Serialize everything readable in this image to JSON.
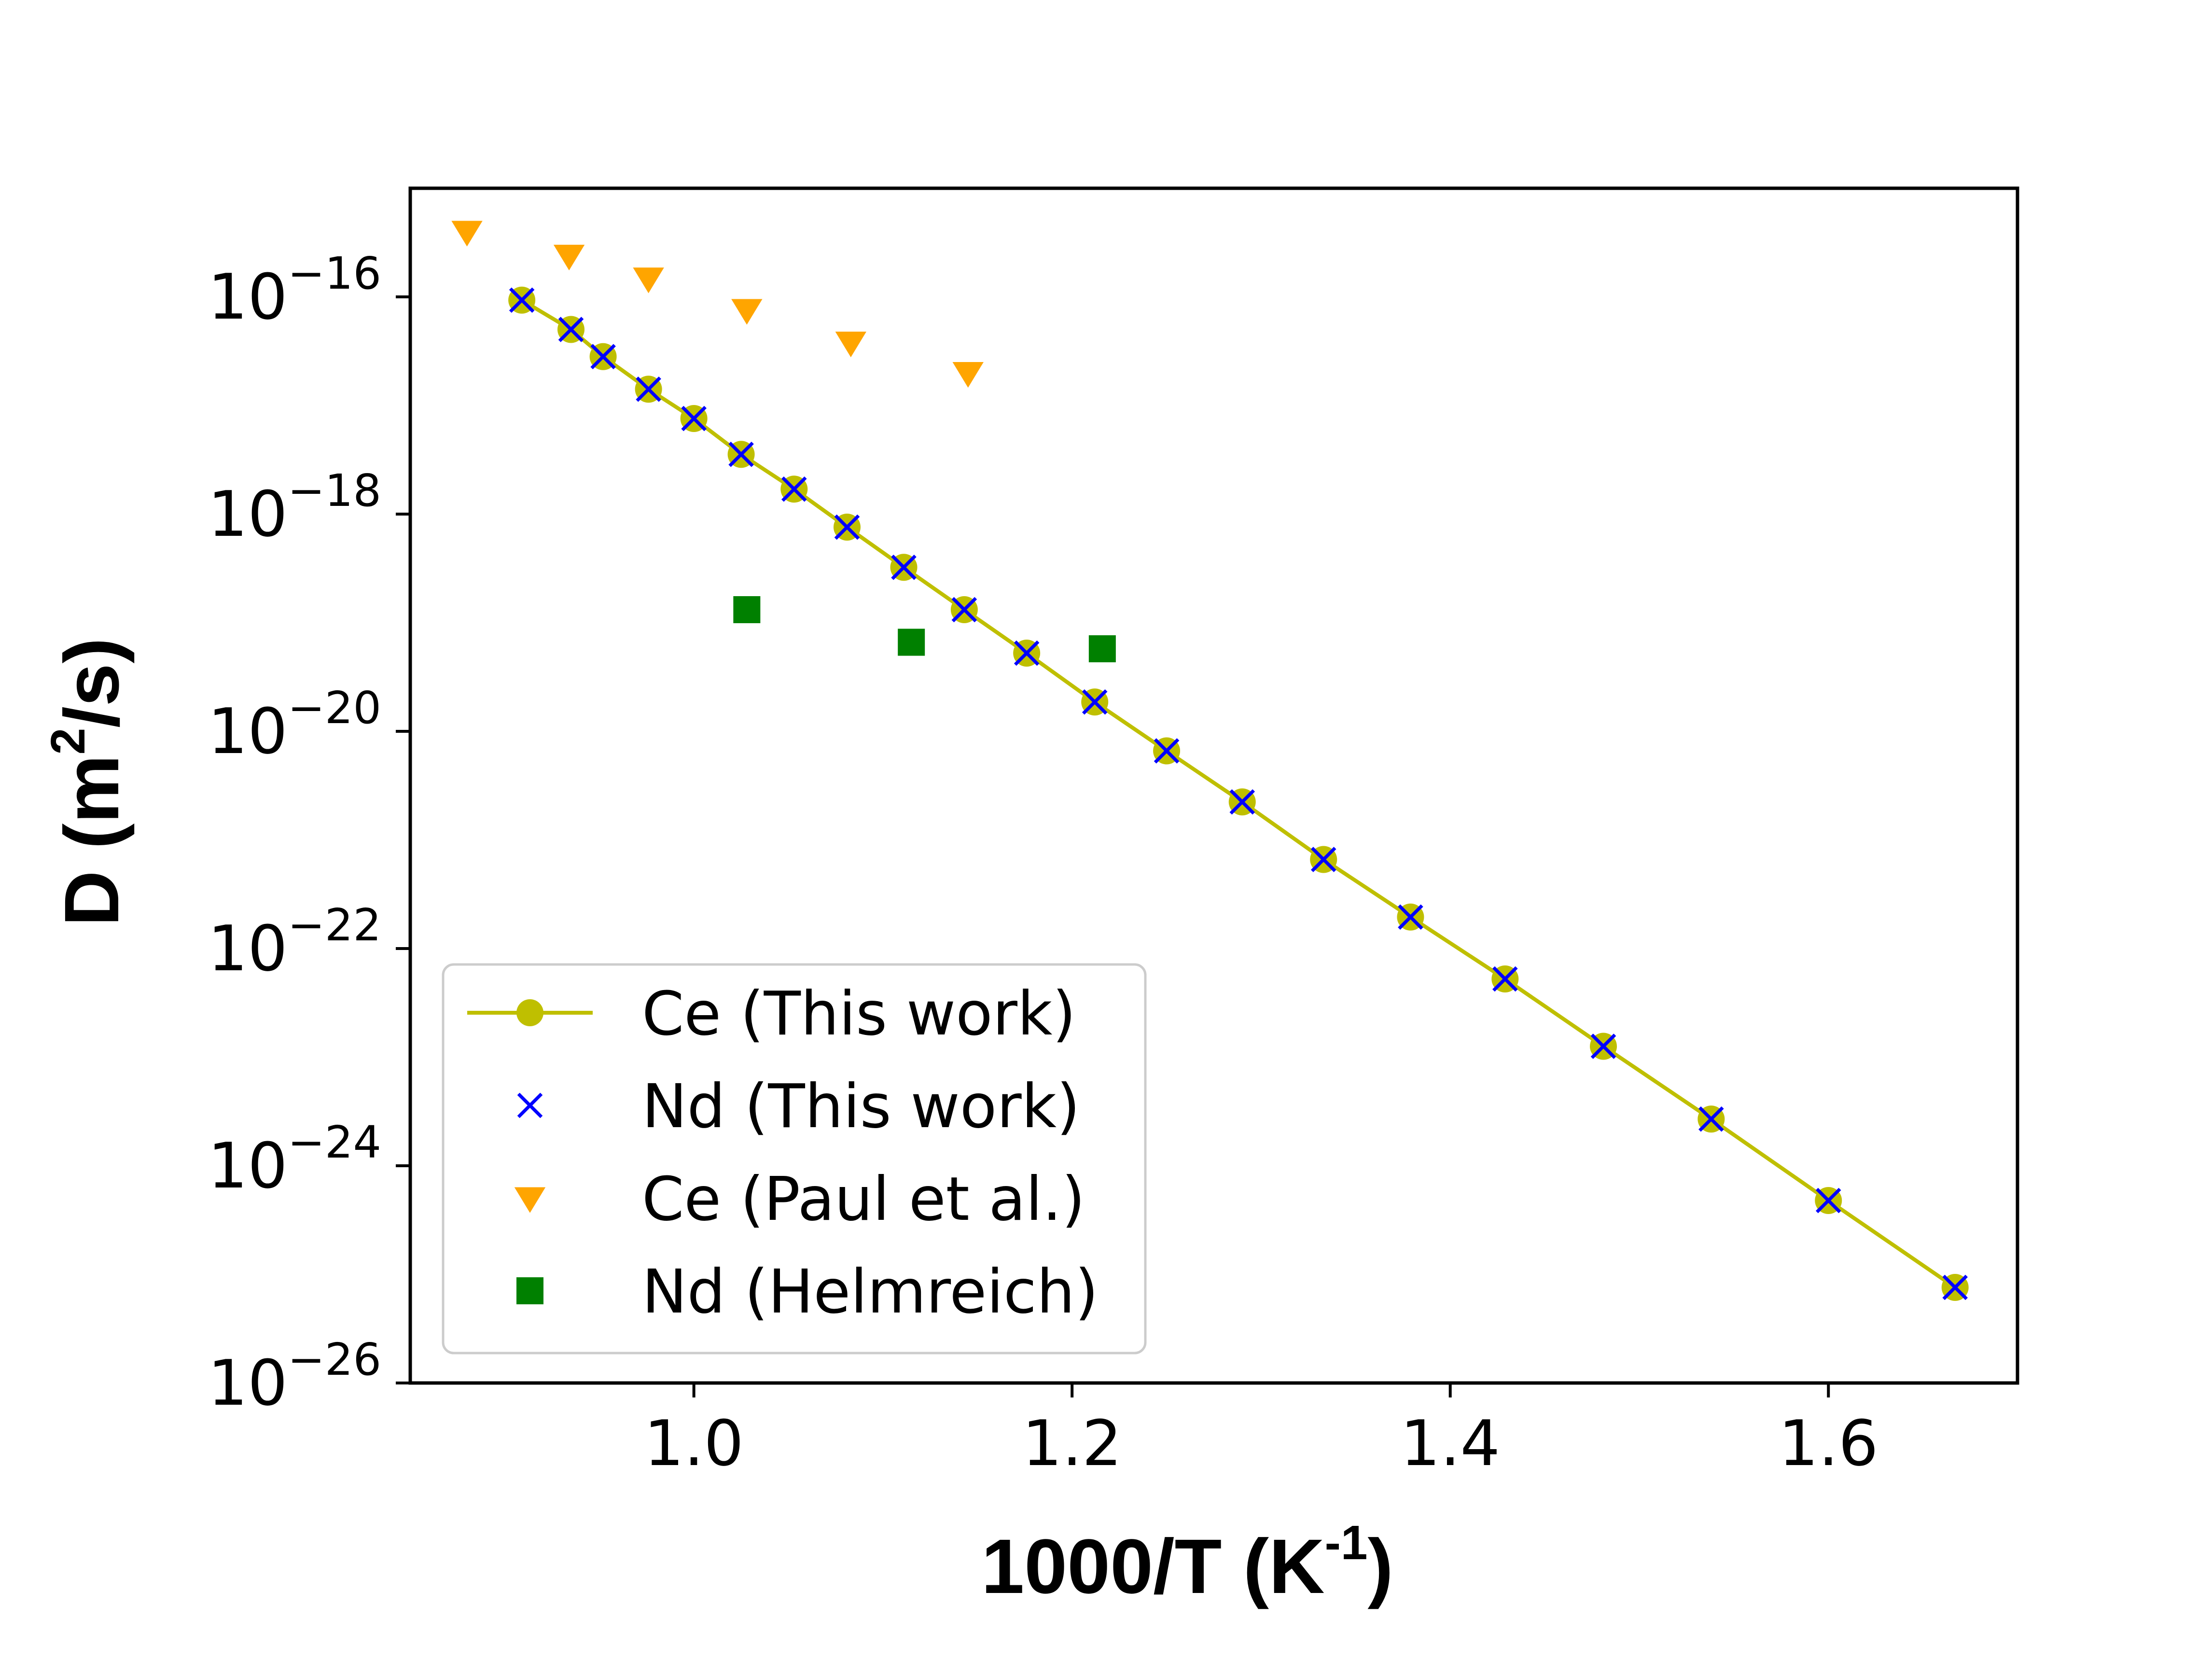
{
  "chart_data": {
    "type": "scatter",
    "xlabel": "1000/T (K",
    "xlabel_sup": "-1",
    "xlabel_tail": ")",
    "ylabel": "D (m",
    "ylabel_sup": "2",
    "ylabel_tail": "/s)",
    "xlim": [
      0.85,
      1.7
    ],
    "ylim_exponent": [
      -26,
      -15
    ],
    "yscale": "log",
    "x_ticks": [
      {
        "value": 1.0,
        "label": "1.0"
      },
      {
        "value": 1.2,
        "label": "1.2"
      },
      {
        "value": 1.4,
        "label": "1.4"
      },
      {
        "value": 1.6,
        "label": "1.6"
      }
    ],
    "y_ticks": [
      {
        "exponent": -16,
        "base": "10",
        "sup": "−16"
      },
      {
        "exponent": -18,
        "base": "10",
        "sup": "−18"
      },
      {
        "exponent": -20,
        "base": "10",
        "sup": "−20"
      },
      {
        "exponent": -22,
        "base": "10",
        "sup": "−22"
      },
      {
        "exponent": -24,
        "base": "10",
        "sup": "−24"
      },
      {
        "exponent": -26,
        "base": "10",
        "sup": "−26"
      }
    ],
    "legend_position": "lower-left",
    "series": [
      {
        "name": "Ce (This work)",
        "marker": "circle-line",
        "color": "#bfbf00",
        "x": [
          0.909,
          0.935,
          0.952,
          0.976,
          1.0,
          1.025,
          1.053,
          1.081,
          1.111,
          1.143,
          1.176,
          1.212,
          1.25,
          1.29,
          1.333,
          1.379,
          1.429,
          1.481,
          1.538,
          1.6,
          1.667
        ],
        "log10_y": [
          -16.03,
          -16.3,
          -16.55,
          -16.85,
          -17.12,
          -17.45,
          -17.77,
          -18.12,
          -18.49,
          -18.88,
          -19.28,
          -19.73,
          -20.18,
          -20.65,
          -21.18,
          -21.71,
          -22.28,
          -22.9,
          -23.57,
          -24.32,
          -25.12
        ]
      },
      {
        "name": "Nd (This work)",
        "marker": "x",
        "color": "#0000ff",
        "x": [
          0.909,
          0.935,
          0.952,
          0.976,
          1.0,
          1.025,
          1.053,
          1.081,
          1.111,
          1.143,
          1.176,
          1.212,
          1.25,
          1.29,
          1.333,
          1.379,
          1.429,
          1.481,
          1.538,
          1.6,
          1.667
        ],
        "log10_y": [
          -16.03,
          -16.3,
          -16.55,
          -16.85,
          -17.12,
          -17.45,
          -17.77,
          -18.12,
          -18.49,
          -18.88,
          -19.28,
          -19.73,
          -20.18,
          -20.65,
          -21.18,
          -21.71,
          -22.28,
          -22.9,
          -23.57,
          -24.32,
          -25.12
        ]
      },
      {
        "name": "Ce (Paul et al.)",
        "marker": "triangle-down",
        "color": "#ffa500",
        "x": [
          0.88,
          0.934,
          0.976,
          1.028,
          1.083,
          1.145
        ],
        "log10_y": [
          -15.4,
          -15.62,
          -15.83,
          -16.12,
          -16.42,
          -16.7
        ]
      },
      {
        "name": "Nd (Helmreich)",
        "marker": "square",
        "color": "#008000",
        "x": [
          1.028,
          1.115,
          1.216
        ],
        "log10_y": [
          -18.88,
          -19.18,
          -19.24
        ]
      }
    ]
  }
}
